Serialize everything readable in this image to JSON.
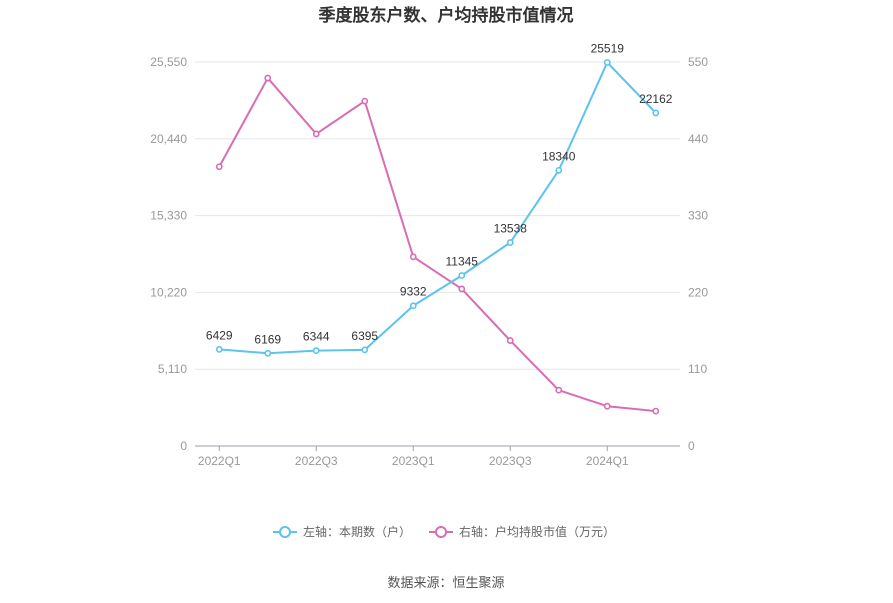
{
  "chart_data": {
    "type": "line",
    "title": "季度股东户数、户均持股市值情况",
    "categories": [
      "2022Q1",
      "2022Q2",
      "2022Q3",
      "2022Q4",
      "2023Q1",
      "2023Q2",
      "2023Q3",
      "2023Q4",
      "2024Q1",
      "2024Q2"
    ],
    "x_tick_labels": [
      "2022Q1",
      "2022Q3",
      "2023Q1",
      "2023Q3",
      "2024Q1"
    ],
    "left_axis": {
      "ticks": [
        "0",
        "5,110",
        "10,220",
        "15,330",
        "20,440",
        "25,550"
      ],
      "ylim": [
        0,
        25550
      ]
    },
    "right_axis": {
      "ticks": [
        "0",
        "110",
        "220",
        "330",
        "440",
        "550"
      ],
      "ylim": [
        0,
        550
      ]
    },
    "grid": true,
    "legend_position": "bottom",
    "series": [
      {
        "name": "左轴：本期数（户）",
        "axis": "left",
        "color": "#5bc4ee",
        "values": [
          6429,
          6169,
          6344,
          6395,
          9332,
          11345,
          13538,
          18340,
          25519,
          22162
        ],
        "labels": [
          "6429",
          "6169",
          "6344",
          "6395",
          "9332",
          "11345",
          "13538",
          "18340",
          "25519",
          "22162"
        ]
      },
      {
        "name": "右轴：户均持股市值（万元）",
        "axis": "right",
        "color": "#d96cb3",
        "values": [
          400,
          527,
          447,
          494,
          271,
          225,
          151,
          80,
          57,
          50
        ]
      }
    ],
    "source": "数据来源：恒生聚源"
  }
}
